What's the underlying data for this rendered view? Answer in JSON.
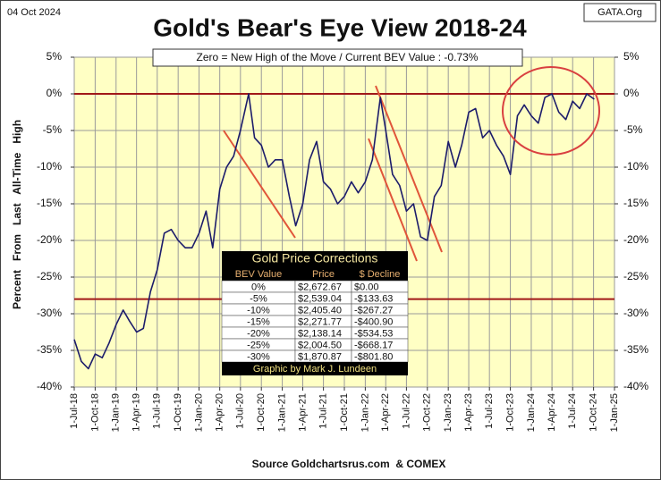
{
  "chart_data": {
    "type": "line",
    "title": "Gold's Bear's Eye View 2018-24",
    "date_label": "04 Oct 2024",
    "site_label": "GATA.Org",
    "annotation": "Zero = New High of the Move / Current  BEV Value : -0.73%",
    "y_label": "Percent   From   Last   All-Time   High",
    "source": "Source Goldchartsrus.com  & COMEX",
    "color": "#1c1c6b",
    "reference_color": "#a01818",
    "reference_lines": [
      0,
      -28
    ],
    "grid": true,
    "x": [
      "2018-07-01",
      "2018-08-01",
      "2018-09-01",
      "2018-10-01",
      "2018-11-01",
      "2018-12-01",
      "2019-01-01",
      "2019-02-01",
      "2019-03-01",
      "2019-04-01",
      "2019-05-01",
      "2019-06-01",
      "2019-07-01",
      "2019-08-01",
      "2019-09-01",
      "2019-10-01",
      "2019-11-01",
      "2019-12-01",
      "2020-01-01",
      "2020-02-01",
      "2020-03-01",
      "2020-04-01",
      "2020-05-01",
      "2020-06-01",
      "2020-07-01",
      "2020-08-06",
      "2020-09-01",
      "2020-10-01",
      "2020-11-01",
      "2020-12-01",
      "2021-01-01",
      "2021-02-01",
      "2021-03-01",
      "2021-04-01",
      "2021-05-01",
      "2021-06-01",
      "2021-07-01",
      "2021-08-01",
      "2021-09-01",
      "2021-10-01",
      "2021-11-01",
      "2021-12-01",
      "2022-01-01",
      "2022-02-01",
      "2022-03-08",
      "2022-04-01",
      "2022-05-01",
      "2022-06-01",
      "2022-07-01",
      "2022-08-01",
      "2022-09-01",
      "2022-10-01",
      "2022-11-01",
      "2022-12-01",
      "2023-01-01",
      "2023-02-01",
      "2023-03-01",
      "2023-04-01",
      "2023-05-01",
      "2023-06-01",
      "2023-07-01",
      "2023-08-01",
      "2023-09-01",
      "2023-10-01",
      "2023-11-01",
      "2023-12-01",
      "2024-01-01",
      "2024-02-01",
      "2024-03-01",
      "2024-04-01",
      "2024-05-01",
      "2024-06-01",
      "2024-07-01",
      "2024-08-01",
      "2024-09-01",
      "2024-10-04"
    ],
    "values": [
      -33.5,
      -36.5,
      -37.5,
      -35.5,
      -36,
      -34,
      -31.5,
      -29.5,
      -31,
      -32.5,
      -32,
      -27,
      -24,
      -19,
      -18.5,
      -20,
      -21,
      -21,
      -19,
      -16,
      -21,
      -13,
      -10,
      -8.5,
      -5,
      0,
      -6,
      -7,
      -10,
      -9,
      -9,
      -14,
      -18,
      -15,
      -9,
      -6.5,
      -12,
      -13,
      -15,
      -14,
      -12,
      -13.5,
      -12,
      -9,
      -0.5,
      -5,
      -11,
      -12.5,
      -16,
      -15,
      -19.5,
      -20,
      -14,
      -12.5,
      -6.5,
      -10,
      -7,
      -2.5,
      -2,
      -6,
      -5,
      -7,
      -8.5,
      -11,
      -3,
      -1.5,
      -3,
      -4,
      -0.5,
      0,
      -2.5,
      -3.5,
      -1,
      -2,
      0,
      -0.73
    ],
    "xlim": [
      "2018-07-01",
      "2025-01-01"
    ],
    "xticks": [
      {
        "value": "2018-07-01",
        "label": "1-Jul-18"
      },
      {
        "value": "2018-10-01",
        "label": "1-Oct-18"
      },
      {
        "value": "2019-01-01",
        "label": "1-Jan-19"
      },
      {
        "value": "2019-04-01",
        "label": "1-Apr-19"
      },
      {
        "value": "2019-07-01",
        "label": "1-Jul-19"
      },
      {
        "value": "2019-10-01",
        "label": "1-Oct-19"
      },
      {
        "value": "2020-01-01",
        "label": "1-Jan-20"
      },
      {
        "value": "2020-04-01",
        "label": "1-Apr-20"
      },
      {
        "value": "2020-07-01",
        "label": "1-Jul-20"
      },
      {
        "value": "2020-10-01",
        "label": "1-Oct-20"
      },
      {
        "value": "2021-01-01",
        "label": "1-Jan-21"
      },
      {
        "value": "2021-04-01",
        "label": "1-Apr-21"
      },
      {
        "value": "2021-07-01",
        "label": "1-Jul-21"
      },
      {
        "value": "2021-10-01",
        "label": "1-Oct-21"
      },
      {
        "value": "2022-01-01",
        "label": "1-Jan-22"
      },
      {
        "value": "2022-04-01",
        "label": "1-Apr-22"
      },
      {
        "value": "2022-07-01",
        "label": "1-Jul-22"
      },
      {
        "value": "2022-10-01",
        "label": "1-Oct-22"
      },
      {
        "value": "2023-01-01",
        "label": "1-Jan-23"
      },
      {
        "value": "2023-04-01",
        "label": "1-Apr-23"
      },
      {
        "value": "2023-07-01",
        "label": "1-Jul-23"
      },
      {
        "value": "2023-10-01",
        "label": "1-Oct-23"
      },
      {
        "value": "2024-01-01",
        "label": "1-Jan-24"
      },
      {
        "value": "2024-04-01",
        "label": "1-Apr-24"
      },
      {
        "value": "2024-07-01",
        "label": "1-Jul-24"
      },
      {
        "value": "2024-10-01",
        "label": "1-Oct-24"
      },
      {
        "value": "2025-01-01",
        "label": "1-Jan-25"
      }
    ],
    "ylim": [
      -40,
      5
    ],
    "yticks": [
      {
        "value": 5,
        "label": "5%"
      },
      {
        "value": 0,
        "label": "0%"
      },
      {
        "value": -5,
        "label": "-5%"
      },
      {
        "value": -10,
        "label": "-10%"
      },
      {
        "value": -15,
        "label": "-15%"
      },
      {
        "value": -20,
        "label": "-20%"
      },
      {
        "value": -25,
        "label": "-25%"
      },
      {
        "value": -30,
        "label": "-30%"
      },
      {
        "value": -35,
        "label": "-35%"
      },
      {
        "value": -40,
        "label": "-40%"
      }
    ],
    "table": {
      "title": "Gold Price Corrections",
      "columns": [
        "BEV Value",
        "Price",
        "$ Decline"
      ],
      "rows": [
        [
          "0%",
          "$2,672.67",
          "$0.00"
        ],
        [
          "-5%",
          "$2,539.04",
          "-$133.63"
        ],
        [
          "-10%",
          "$2,405.40",
          "-$267.27"
        ],
        [
          "-15%",
          "$2,271.77",
          "-$400.90"
        ],
        [
          "-20%",
          "$2,138.14",
          "-$534.53"
        ],
        [
          "-25%",
          "$2,004.50",
          "-$668.17"
        ],
        [
          "-30%",
          "$1,870.87",
          "-$801.80"
        ]
      ],
      "footer": "Graphic by Mark J. Lundeen"
    }
  }
}
